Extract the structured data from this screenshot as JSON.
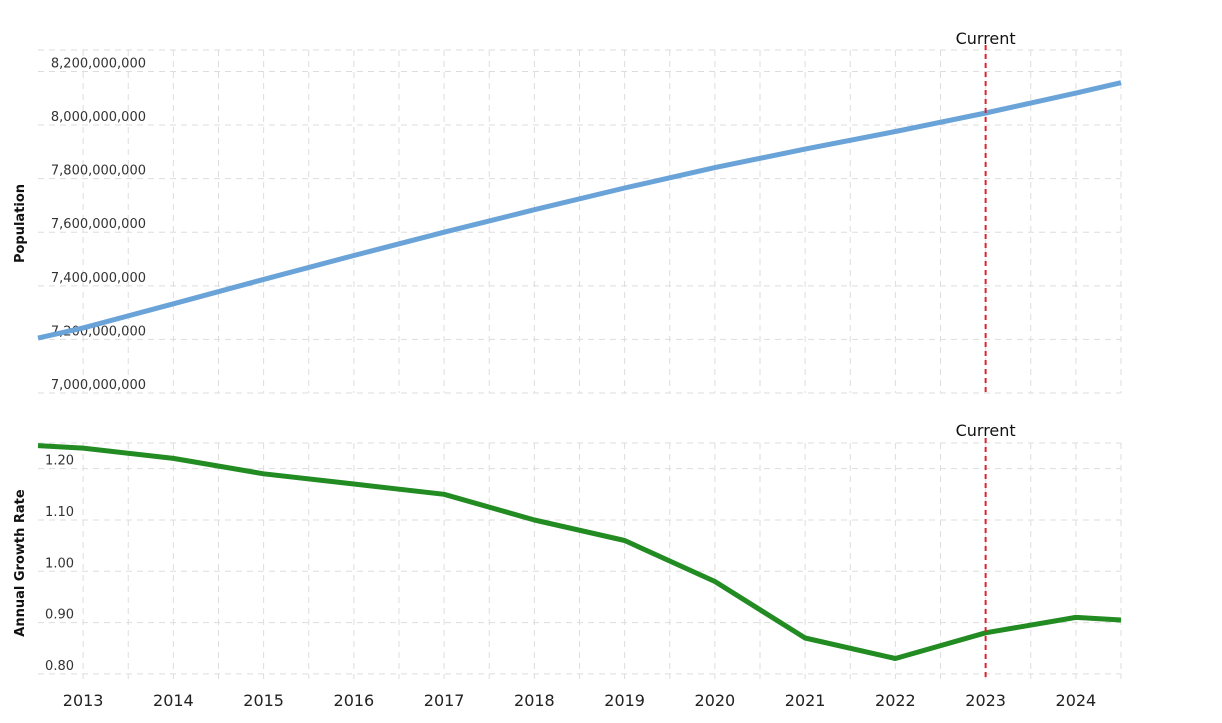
{
  "chart_data": [
    {
      "type": "line",
      "ylabel": "Population",
      "ylim": [
        7000000000,
        8280000000
      ],
      "y_ticks": [
        {
          "value": 7000000000,
          "label": "7,000,000,000"
        },
        {
          "value": 7200000000,
          "label": "7,200,000,000"
        },
        {
          "value": 7400000000,
          "label": "7,400,000,000"
        },
        {
          "value": 7600000000,
          "label": "7,600,000,000"
        },
        {
          "value": 7800000000,
          "label": "7,800,000,000"
        },
        {
          "value": 8000000000,
          "label": "8,000,000,000"
        },
        {
          "value": 8200000000,
          "label": "8,200,000,000"
        }
      ],
      "x": [
        2012.5,
        2013,
        2014,
        2015,
        2016,
        2017,
        2018,
        2019,
        2020,
        2021,
        2022,
        2023,
        2024,
        2024.5
      ],
      "series": [
        {
          "color": "#6aa3d8",
          "values": [
            7205000000,
            7243000000,
            7333000000,
            7424000000,
            7513000000,
            7600000000,
            7684000000,
            7765000000,
            7841000000,
            7910000000,
            7976000000,
            8045000000,
            8119000000,
            8158000000
          ]
        }
      ],
      "marker": {
        "x": 2023,
        "label": "Current",
        "color": "#d9252e"
      },
      "grid": true
    },
    {
      "type": "line",
      "ylabel": "Annual Growth Rate",
      "ylim": [
        0.79,
        1.25
      ],
      "y_ticks": [
        {
          "value": 0.8,
          "label": "0.80"
        },
        {
          "value": 0.9,
          "label": "0.90"
        },
        {
          "value": 1.0,
          "label": "1.00"
        },
        {
          "value": 1.1,
          "label": "1.10"
        },
        {
          "value": 1.2,
          "label": "1.20"
        }
      ],
      "x": [
        2012.5,
        2013,
        2014,
        2015,
        2016,
        2017,
        2018,
        2019,
        2020,
        2021,
        2022,
        2023,
        2024,
        2024.5
      ],
      "series": [
        {
          "color": "#228b22",
          "values": [
            1.245,
            1.24,
            1.22,
            1.19,
            1.17,
            1.15,
            1.1,
            1.06,
            0.98,
            0.87,
            0.83,
            0.88,
            0.91,
            0.905
          ]
        }
      ],
      "marker": {
        "x": 2023,
        "label": "Current",
        "color": "#d9252e"
      },
      "grid": true
    }
  ],
  "x_tick_labels": [
    "2013",
    "2014",
    "2015",
    "2016",
    "2017",
    "2018",
    "2019",
    "2020",
    "2021",
    "2022",
    "2023",
    "2024"
  ],
  "x_tick_values": [
    2013,
    2014,
    2015,
    2016,
    2017,
    2018,
    2019,
    2020,
    2021,
    2022,
    2023,
    2024
  ],
  "x_range": [
    2012.5,
    2024.5
  ]
}
